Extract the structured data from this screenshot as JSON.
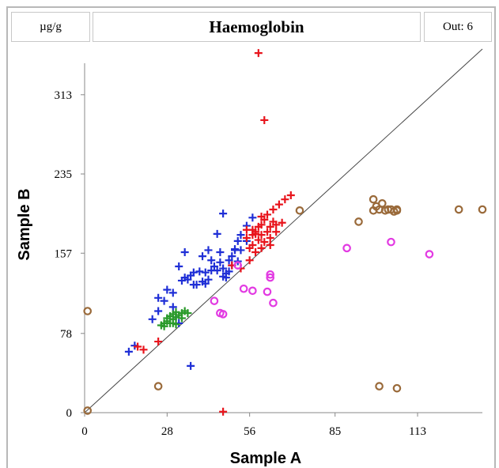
{
  "header": {
    "unit": "µg/g",
    "title": "Haemoglobin",
    "outliers": "Out: 6"
  },
  "colors": {
    "blue": "#1f2fd6",
    "red": "#e8141c",
    "green": "#2a9a2a",
    "magenta": "#e23ae2",
    "brown": "#9a6a3a",
    "line": "#444444",
    "axis": "#888888"
  },
  "chart_data": {
    "type": "scatter",
    "title": "Haemoglobin",
    "xlabel": "Sample A",
    "ylabel": "Sample B",
    "xlim": [
      0,
      135
    ],
    "ylim": [
      0,
      358
    ],
    "xticks": [
      0,
      28,
      56,
      85,
      113
    ],
    "yticks": [
      0,
      78,
      157,
      235,
      313
    ],
    "identity_line": true,
    "grid": false,
    "series": [
      {
        "marker": "plus",
        "color": "blue",
        "points": [
          [
            15,
            60
          ],
          [
            17,
            66
          ],
          [
            23,
            92
          ],
          [
            25,
            100
          ],
          [
            25,
            113
          ],
          [
            27,
            110
          ],
          [
            28,
            121
          ],
          [
            30,
            118
          ],
          [
            30,
            104
          ],
          [
            31,
            94
          ],
          [
            32,
            144
          ],
          [
            33,
            130
          ],
          [
            34,
            133
          ],
          [
            34,
            158
          ],
          [
            35,
            131
          ],
          [
            36,
            135
          ],
          [
            37,
            126
          ],
          [
            37,
            138
          ],
          [
            38,
            126
          ],
          [
            39,
            139
          ],
          [
            40,
            129
          ],
          [
            41,
            138
          ],
          [
            41,
            127
          ],
          [
            42,
            131
          ],
          [
            43,
            140
          ],
          [
            43,
            150
          ],
          [
            44,
            144
          ],
          [
            45,
            140
          ],
          [
            46,
            158
          ],
          [
            46,
            148
          ],
          [
            47,
            142
          ],
          [
            47,
            134
          ],
          [
            48,
            137
          ],
          [
            48,
            133
          ],
          [
            49,
            139
          ],
          [
            49,
            150
          ],
          [
            50,
            145
          ],
          [
            50,
            154
          ],
          [
            51,
            161
          ],
          [
            52,
            149
          ],
          [
            52,
            169
          ],
          [
            53,
            175
          ],
          [
            53,
            160
          ],
          [
            55,
            169
          ],
          [
            55,
            184
          ],
          [
            57,
            192
          ],
          [
            45,
            176
          ],
          [
            47,
            196
          ],
          [
            40,
            154
          ],
          [
            36,
            46
          ],
          [
            32,
            88
          ],
          [
            42,
            160
          ],
          [
            51,
            160
          ]
        ]
      },
      {
        "marker": "plus",
        "color": "red",
        "points": [
          [
            18,
            65
          ],
          [
            20,
            62
          ],
          [
            25,
            70
          ],
          [
            47,
            1
          ],
          [
            55,
            180
          ],
          [
            55,
            172
          ],
          [
            56,
            162
          ],
          [
            57,
            165
          ],
          [
            57,
            175
          ],
          [
            58,
            178
          ],
          [
            58,
            158
          ],
          [
            59,
            183
          ],
          [
            59,
            170
          ],
          [
            60,
            185
          ],
          [
            60,
            175
          ],
          [
            61,
            168
          ],
          [
            61,
            190
          ],
          [
            62,
            178
          ],
          [
            62,
            195
          ],
          [
            63,
            183
          ],
          [
            63,
            172
          ],
          [
            64,
            188
          ],
          [
            64,
            200
          ],
          [
            65,
            178
          ],
          [
            65,
            185
          ],
          [
            66,
            205
          ],
          [
            67,
            187
          ],
          [
            68,
            210
          ],
          [
            70,
            214
          ],
          [
            58,
            176
          ],
          [
            60,
            162
          ],
          [
            63,
            165
          ],
          [
            56,
            150
          ],
          [
            53,
            142
          ],
          [
            50,
            145
          ],
          [
            59,
            354
          ],
          [
            61,
            288
          ],
          [
            57,
            180
          ],
          [
            60,
            193
          ]
        ]
      },
      {
        "marker": "plus",
        "color": "green",
        "points": [
          [
            26,
            86
          ],
          [
            27,
            88
          ],
          [
            27,
            85
          ],
          [
            28,
            90
          ],
          [
            28,
            93
          ],
          [
            29,
            95
          ],
          [
            29,
            88
          ],
          [
            30,
            92
          ],
          [
            30,
            97
          ],
          [
            31,
            94
          ],
          [
            31,
            99
          ],
          [
            32,
            96
          ],
          [
            33,
            98
          ],
          [
            33,
            93
          ],
          [
            34,
            100
          ],
          [
            35,
            98
          ],
          [
            31,
            87
          ],
          [
            30,
            88
          ]
        ]
      },
      {
        "marker": "circle",
        "color": "magenta",
        "points": [
          [
            44,
            110
          ],
          [
            46,
            98
          ],
          [
            47,
            97
          ],
          [
            52,
            145
          ],
          [
            54,
            122
          ],
          [
            57,
            120
          ],
          [
            62,
            119
          ],
          [
            63,
            136
          ],
          [
            63,
            133
          ],
          [
            64,
            108
          ],
          [
            89,
            162
          ],
          [
            104,
            168
          ],
          [
            117,
            156
          ]
        ]
      },
      {
        "marker": "circle",
        "color": "brown",
        "points": [
          [
            1,
            100
          ],
          [
            1,
            2
          ],
          [
            25,
            26
          ],
          [
            73,
            199
          ],
          [
            93,
            188
          ],
          [
            98,
            210
          ],
          [
            98,
            199
          ],
          [
            99,
            203
          ],
          [
            100,
            200
          ],
          [
            100,
            26
          ],
          [
            101,
            206
          ],
          [
            102,
            199
          ],
          [
            103,
            200
          ],
          [
            104,
            200
          ],
          [
            105,
            198
          ],
          [
            106,
            200
          ],
          [
            106,
            199
          ],
          [
            106,
            24
          ],
          [
            127,
            200
          ],
          [
            135,
            200
          ]
        ]
      }
    ]
  }
}
